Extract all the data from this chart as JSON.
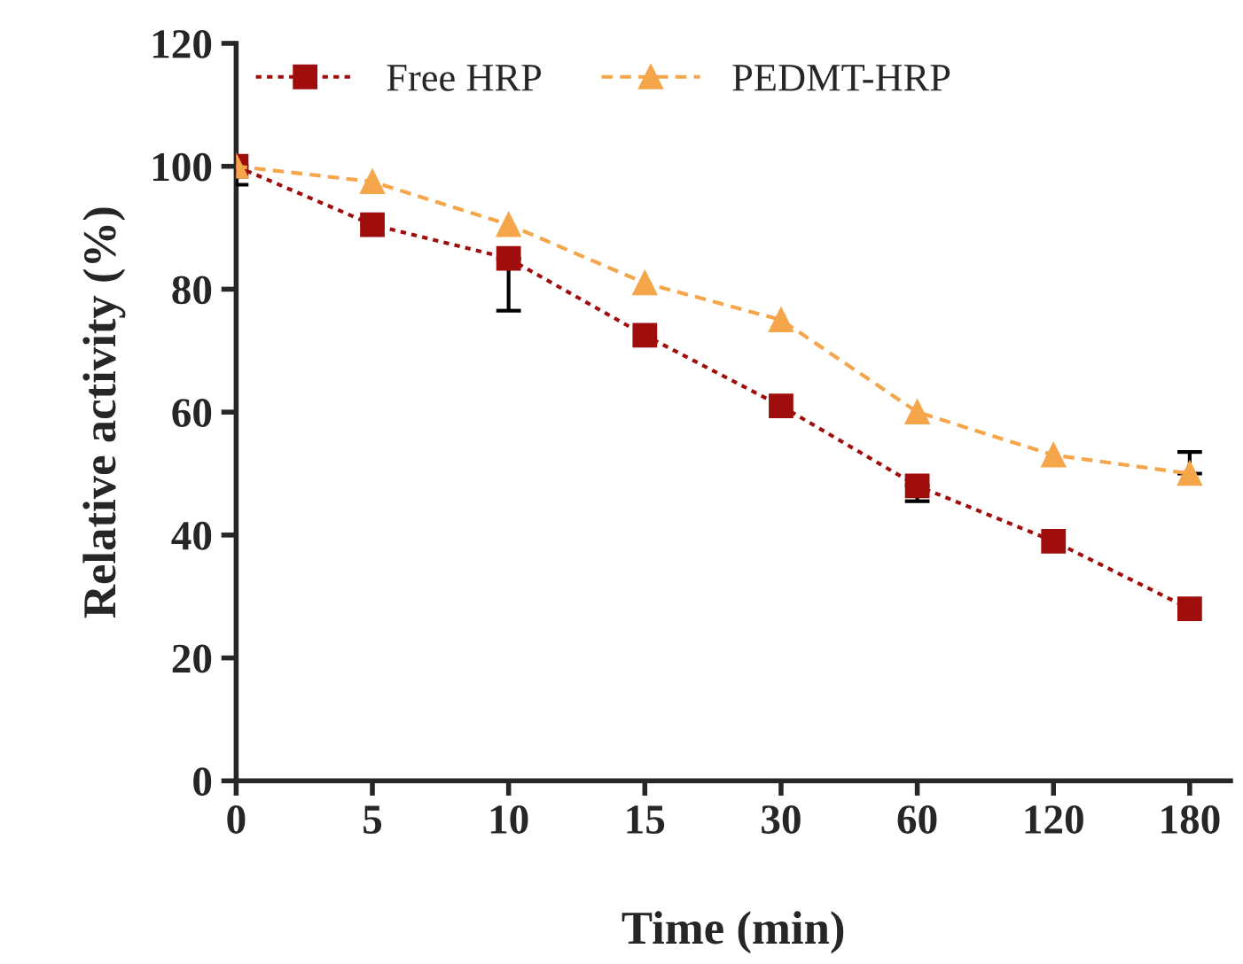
{
  "chart_data": {
    "type": "line",
    "xlabel": "Time (min)",
    "ylabel": "Relative activity (%)",
    "categories": [
      "0",
      "5",
      "10",
      "15",
      "30",
      "60",
      "120",
      "180"
    ],
    "series": [
      {
        "name": "Free HRP",
        "color": "#a00d0d",
        "marker": "square",
        "line_style": "dotted",
        "values": [
          100,
          90.5,
          85,
          72.5,
          61,
          48,
          39,
          28
        ],
        "errors": [
          [
            97,
            100
          ],
          null,
          [
            76.5,
            85
          ],
          null,
          null,
          [
            45.5,
            48
          ],
          null,
          null
        ]
      },
      {
        "name": "PEDMT-HRP",
        "color": "#f5a54a",
        "marker": "triangle",
        "line_style": "dashed",
        "values": [
          100,
          97.5,
          90.5,
          81,
          75,
          60,
          53,
          50
        ],
        "errors": [
          null,
          null,
          null,
          null,
          null,
          null,
          null,
          [
            50,
            53.5
          ]
        ]
      }
    ],
    "ylim": [
      0,
      120
    ],
    "yticks": [
      0,
      20,
      40,
      60,
      80,
      100,
      120
    ],
    "grid": false,
    "legend": "top left"
  }
}
